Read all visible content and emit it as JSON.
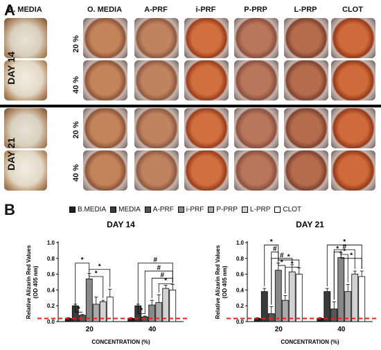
{
  "panelA": {
    "letter": "A",
    "columns": [
      "B. MEDIA",
      "O. MEDIA",
      "A-PRF",
      "i-PRF",
      "P-PRP",
      "L-PRP",
      "CLOT"
    ],
    "days": [
      "DAY 14",
      "DAY 21"
    ],
    "concentrations": [
      "20 %",
      "40 %"
    ]
  },
  "panelB": {
    "letter": "B",
    "legend": [
      "B.MEDIA",
      "MEDIA",
      "A-PRF",
      "i-PRF",
      "P-PRP",
      "L-PRP",
      "CLOT"
    ],
    "colors": [
      "#222222",
      "#3a3a3a",
      "#555555",
      "#888888",
      "#aaaaaa",
      "#d2d2d2",
      "#ffffff"
    ],
    "threshold_color": "#e0231a"
  },
  "chart_data": [
    {
      "type": "bar",
      "title": "DAY 14",
      "ylabel": "Relative Alizarin Red Values (OD 405 nm)",
      "xlabel": "CONCENTRATION (%)",
      "categories": [
        "20",
        "40"
      ],
      "yticks": [
        "0.0",
        "0.2",
        "0.4",
        "0.6",
        "0.8",
        "1.0"
      ],
      "ylim": [
        0,
        1.0
      ],
      "threshold": 0.04,
      "series": [
        {
          "name": "B.MEDIA",
          "values": [
            0.04,
            0.04
          ],
          "errors": [
            0.01,
            0.01
          ]
        },
        {
          "name": "MEDIA",
          "values": [
            0.2,
            0.2
          ],
          "errors": [
            0.02,
            0.02
          ]
        },
        {
          "name": "A-PRF",
          "values": [
            0.08,
            0.06
          ],
          "errors": [
            0.01,
            0.01
          ]
        },
        {
          "name": "i-PRF",
          "values": [
            0.54,
            0.21
          ],
          "errors": [
            0.07,
            0.06
          ]
        },
        {
          "name": "P-PRP",
          "values": [
            0.22,
            0.24
          ],
          "errors": [
            0.09,
            0.1
          ]
        },
        {
          "name": "L-PRP",
          "values": [
            0.25,
            0.42
          ],
          "errors": [
            0.02,
            0.04
          ]
        },
        {
          "name": "CLOT",
          "values": [
            0.31,
            0.4
          ],
          "errors": [
            0.1,
            0.07
          ]
        }
      ],
      "annotations": [
        {
          "text": "*",
          "group": 0,
          "from": 1,
          "to": 2,
          "y": 0.12
        },
        {
          "text": "*",
          "group": 0,
          "from": 1,
          "to": 3,
          "y": 0.74
        },
        {
          "text": "*",
          "group": 0,
          "from": 3,
          "to": 6,
          "y": 0.66
        },
        {
          "text": "*",
          "group": 0,
          "from": 3,
          "to": 5,
          "y": 0.57
        },
        {
          "text": "*",
          "group": 1,
          "from": 1,
          "to": 2,
          "y": 0.1
        },
        {
          "text": "#",
          "group": 1,
          "from": 1,
          "to": 6,
          "y": 0.74
        },
        {
          "text": "#",
          "group": 1,
          "from": 2,
          "to": 6,
          "y": 0.64
        },
        {
          "text": "#",
          "group": 1,
          "from": 3,
          "to": 6,
          "y": 0.55
        },
        {
          "text": "*",
          "group": 1,
          "from": 4,
          "to": 6,
          "y": 0.48
        }
      ]
    },
    {
      "type": "bar",
      "title": "DAY 21",
      "ylabel": "Relative Alizarin Red Values (OD 405 nm)",
      "xlabel": "CONCENTRATION (%)",
      "categories": [
        "20",
        "40"
      ],
      "yticks": [
        "0.0",
        "0.2",
        "0.4",
        "0.6",
        "0.8",
        "1.0"
      ],
      "ylim": [
        0,
        1.0
      ],
      "threshold": 0.04,
      "series": [
        {
          "name": "B.MEDIA",
          "values": [
            0.04,
            0.04
          ],
          "errors": [
            0.01,
            0.01
          ]
        },
        {
          "name": "MEDIA",
          "values": [
            0.38,
            0.38
          ],
          "errors": [
            0.04,
            0.04
          ]
        },
        {
          "name": "A-PRF",
          "values": [
            0.1,
            0.16
          ],
          "errors": [
            0.09,
            0.09
          ]
        },
        {
          "name": "i-PRF",
          "values": [
            0.65,
            0.81
          ],
          "errors": [
            0.09,
            0.06
          ]
        },
        {
          "name": "P-PRP",
          "values": [
            0.27,
            0.38
          ],
          "errors": [
            0.06,
            0.09
          ]
        },
        {
          "name": "L-PRP",
          "values": [
            0.63,
            0.6
          ],
          "errors": [
            0.09,
            0.04
          ]
        },
        {
          "name": "CLOT",
          "values": [
            0.6,
            0.57
          ],
          "errors": [
            0.08,
            0.07
          ]
        }
      ],
      "annotations": [
        {
          "text": "*",
          "group": 0,
          "from": 1,
          "to": 3,
          "y": 0.97
        },
        {
          "text": "#",
          "group": 0,
          "from": 2,
          "to": 3,
          "y": 0.88
        },
        {
          "text": "#",
          "group": 0,
          "from": 2,
          "to": 5,
          "y": 0.8
        },
        {
          "text": "*",
          "group": 0,
          "from": 3,
          "to": 6,
          "y": 0.78
        },
        {
          "text": "*",
          "group": 0,
          "from": 3,
          "to": 4,
          "y": 0.71
        },
        {
          "text": "*",
          "group": 0,
          "from": 4,
          "to": 6,
          "y": 0.69
        },
        {
          "text": "*",
          "group": 1,
          "from": 1,
          "to": 6,
          "y": 0.97
        },
        {
          "text": "#",
          "group": 1,
          "from": 2,
          "to": 5,
          "y": 0.91
        },
        {
          "text": "*",
          "group": 1,
          "from": 2,
          "to": 3,
          "y": 0.88
        },
        {
          "text": "*",
          "group": 1,
          "from": 3,
          "to": 4,
          "y": 0.85
        },
        {
          "text": "*",
          "group": 1,
          "from": 3,
          "to": 6,
          "y": 0.8
        }
      ]
    }
  ]
}
